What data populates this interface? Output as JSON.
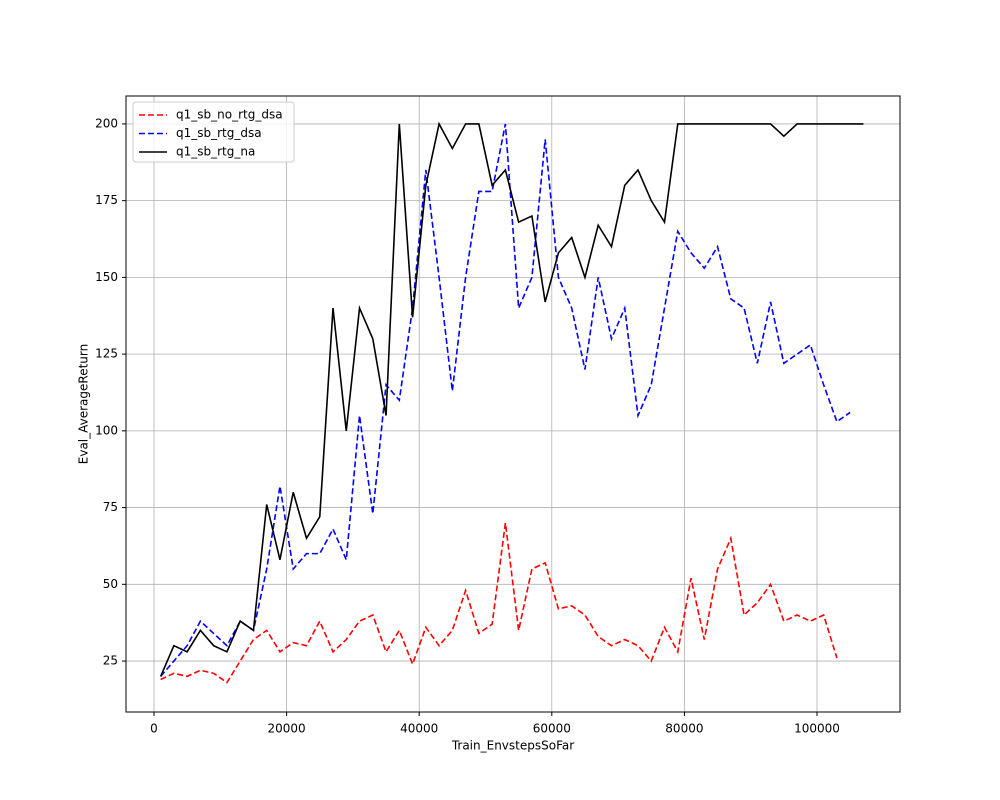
{
  "chart_data": {
    "type": "line",
    "xlabel": "Train_EnvstepsSoFar",
    "ylabel": "Eval_AverageReturn",
    "x": [
      1000,
      3000,
      5000,
      7000,
      9000,
      11000,
      13000,
      15000,
      17000,
      19000,
      21000,
      23000,
      25000,
      27000,
      29000,
      31000,
      33000,
      35000,
      37000,
      39000,
      41000,
      43000,
      45000,
      47000,
      49000,
      51000,
      53000,
      55000,
      57000,
      59000,
      61000,
      63000,
      65000,
      67000,
      69000,
      71000,
      73000,
      75000,
      77000,
      79000,
      81000,
      83000,
      85000,
      87000,
      89000,
      91000,
      93000,
      95000,
      97000,
      99000,
      101000,
      103000,
      105000,
      107000
    ],
    "series": [
      {
        "name": "q1_sb_no_rtg_dsa",
        "color": "#ff0000",
        "dashed": true,
        "values": [
          19,
          21,
          20,
          22,
          21,
          18,
          25,
          32,
          35,
          28,
          31,
          30,
          38,
          28,
          32,
          38,
          40,
          28,
          35,
          24,
          36,
          30,
          35,
          48,
          34,
          37,
          70,
          35,
          55,
          57,
          42,
          43,
          40,
          33,
          30,
          32,
          30,
          25,
          36,
          28,
          52,
          32,
          55,
          65,
          40,
          44,
          50,
          38,
          40,
          38,
          40,
          26,
          null,
          null
        ]
      },
      {
        "name": "q1_sb_rtg_dsa",
        "color": "#0000ff",
        "dashed": true,
        "values": [
          20,
          25,
          30,
          38,
          34,
          30,
          38,
          35,
          55,
          82,
          55,
          60,
          60,
          68,
          58,
          105,
          73,
          115,
          110,
          140,
          185,
          150,
          113,
          150,
          178,
          178,
          200,
          140,
          150,
          195,
          150,
          140,
          120,
          150,
          130,
          140,
          105,
          115,
          140,
          165,
          158,
          153,
          160,
          143,
          140,
          122,
          142,
          122,
          125,
          128,
          115,
          103,
          106,
          null
        ]
      },
      {
        "name": "q1_sb_rtg_na",
        "color": "#000000",
        "dashed": false,
        "values": [
          20,
          30,
          28,
          35,
          30,
          28,
          38,
          35,
          76,
          58,
          80,
          65,
          72,
          140,
          100,
          140,
          130,
          105,
          200,
          137,
          180,
          200,
          192,
          200,
          200,
          180,
          185,
          168,
          170,
          142,
          158,
          163,
          150,
          167,
          160,
          180,
          185,
          175,
          168,
          200,
          200,
          200,
          200,
          200,
          200,
          200,
          200,
          196,
          200,
          200,
          200,
          200,
          200,
          200
        ]
      }
    ],
    "xlim": [
      -4223,
      112519
    ],
    "ylim": [
      8.4,
      209.1
    ],
    "xticks": [
      0,
      20000,
      40000,
      60000,
      80000,
      100000
    ],
    "yticks": [
      25,
      50,
      75,
      100,
      125,
      150,
      175,
      200
    ],
    "grid": true,
    "legend": "upper-left"
  }
}
